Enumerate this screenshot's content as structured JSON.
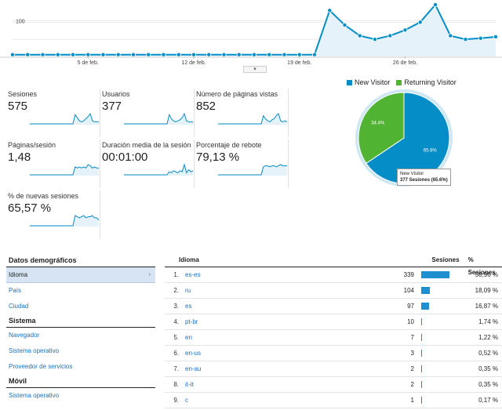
{
  "timeline": {
    "y_tick": "100",
    "y_tick_value": 100,
    "y_max": 145,
    "values": [
      5,
      5,
      5,
      5,
      5,
      5,
      5,
      5,
      5,
      5,
      5,
      5,
      5,
      5,
      5,
      5,
      5,
      5,
      5,
      5,
      5,
      129,
      88,
      58,
      48,
      58,
      74,
      96,
      145,
      58,
      48,
      51,
      55
    ],
    "x_labels": [
      {
        "index": 5,
        "label": "5 de feb."
      },
      {
        "index": 12,
        "label": "12 de feb."
      },
      {
        "index": 19,
        "label": "19 de feb."
      },
      {
        "index": 26,
        "label": "26 de feb."
      }
    ],
    "line_color": "#058dc7",
    "fill_color": "#e6f2f9",
    "handle": "▾"
  },
  "metrics": [
    {
      "label": "Sesiones",
      "value": "575",
      "spark": [
        0,
        0,
        0,
        0,
        0,
        0,
        0,
        0,
        0,
        0,
        0,
        0,
        0,
        0,
        0,
        0,
        0,
        0,
        0,
        0,
        0,
        9,
        6,
        3,
        2,
        3,
        5,
        7,
        10,
        3,
        2,
        2,
        2
      ]
    },
    {
      "label": "Usuarios",
      "value": "377",
      "spark": [
        0,
        0,
        0,
        0,
        0,
        0,
        0,
        0,
        0,
        0,
        0,
        0,
        0,
        0,
        0,
        0,
        0,
        0,
        0,
        0,
        0,
        9,
        5,
        3,
        2,
        3,
        4,
        6,
        10,
        3,
        2,
        2,
        2
      ]
    },
    {
      "label": "Número de páginas vistas",
      "value": "852",
      "spark": [
        0,
        0,
        0,
        0,
        0,
        0,
        0,
        0,
        0,
        0,
        0,
        0,
        0,
        0,
        0,
        0,
        0,
        0,
        0,
        0,
        0,
        8,
        5,
        3,
        2,
        4,
        5,
        8,
        10,
        3,
        2,
        3,
        2
      ]
    },
    {
      "label": "Páginas/sesión",
      "value": "1,48",
      "spark": [
        0,
        0,
        0,
        0,
        0,
        0,
        0,
        0,
        0,
        0,
        0,
        0,
        0,
        0,
        0,
        0,
        0,
        0,
        0,
        0,
        0,
        7,
        6,
        7,
        6,
        7,
        6,
        9,
        8,
        6,
        7,
        6,
        6
      ]
    },
    {
      "label": "Duración media de la sesión",
      "value": "00:01:00",
      "spark": [
        0,
        0,
        0,
        0,
        0,
        0,
        0,
        0,
        0,
        0,
        0,
        0,
        0,
        0,
        0,
        0,
        0,
        0,
        0,
        0,
        0,
        3,
        2,
        4,
        3,
        2,
        4,
        3,
        10,
        2,
        5,
        3,
        4
      ]
    },
    {
      "label": "Porcentaje de rebote",
      "value": "79,13 %",
      "spark": [
        0,
        0,
        0,
        0,
        0,
        0,
        0,
        0,
        0,
        0,
        0,
        0,
        0,
        0,
        0,
        0,
        0,
        0,
        0,
        0,
        0,
        7,
        8,
        8,
        7,
        8,
        8,
        7,
        8,
        9,
        8,
        8,
        8
      ]
    },
    {
      "label": "% de nuevas sesiones",
      "value": "65,57 %",
      "spark": [
        0,
        0,
        0,
        0,
        0,
        0,
        0,
        0,
        0,
        0,
        0,
        0,
        0,
        0,
        0,
        0,
        0,
        0,
        0,
        0,
        0,
        9,
        8,
        7,
        8,
        9,
        7,
        8,
        8,
        9,
        7,
        7,
        5
      ]
    }
  ],
  "pie": {
    "legend": [
      {
        "label": "New Visitor",
        "color": "#058dc7"
      },
      {
        "label": "Returning Visitor",
        "color": "#50b432"
      }
    ],
    "slices": [
      {
        "name": "New Visitor",
        "value": 65.6,
        "label": "65.6%",
        "color": "#058dc7"
      },
      {
        "name": "Returning Visitor",
        "value": 34.4,
        "label": "34.4%",
        "color": "#50b432"
      }
    ],
    "tooltip": {
      "title": "New Visitor",
      "detail": "377 Sesiones (65.6%)"
    }
  },
  "nav": {
    "groups": [
      {
        "title": "Datos demográficos",
        "items": [
          {
            "label": "Idioma",
            "active": true
          },
          {
            "label": "País"
          },
          {
            "label": "Ciudad"
          }
        ]
      },
      {
        "title": "Sistema",
        "items": [
          {
            "label": "Navegador"
          },
          {
            "label": "Sistema operativo"
          },
          {
            "label": "Proveedor de servicios"
          }
        ]
      },
      {
        "title": "Móvil",
        "items": [
          {
            "label": "Sistema operativo"
          }
        ]
      }
    ],
    "chevron": "›"
  },
  "table": {
    "headers": {
      "lang": "Idioma",
      "sessions": "Sesiones",
      "pct": "% Sesiones"
    },
    "rows": [
      {
        "idx": "1.",
        "lang": "es-es",
        "sessions": "339",
        "pct": "58,96 %",
        "share": 58.96
      },
      {
        "idx": "2.",
        "lang": "ru",
        "sessions": "104",
        "pct": "18,09 %",
        "share": 18.09
      },
      {
        "idx": "3.",
        "lang": "es",
        "sessions": "97",
        "pct": "16,87 %",
        "share": 16.87
      },
      {
        "idx": "4.",
        "lang": "pt-br",
        "sessions": "10",
        "pct": "1,74 %",
        "share": 1.74
      },
      {
        "idx": "5.",
        "lang": "en",
        "sessions": "7",
        "pct": "1,22 %",
        "share": 1.22
      },
      {
        "idx": "6.",
        "lang": "en-us",
        "sessions": "3",
        "pct": "0,52 %",
        "share": 0.52
      },
      {
        "idx": "7.",
        "lang": "en-au",
        "sessions": "2",
        "pct": "0,35 %",
        "share": 0.35
      },
      {
        "idx": "8.",
        "lang": "it-it",
        "sessions": "2",
        "pct": "0,35 %",
        "share": 0.35
      },
      {
        "idx": "9.",
        "lang": "c",
        "sessions": "1",
        "pct": "0,17 %",
        "share": 0.17
      }
    ],
    "bar_color": "#1f8fcf"
  }
}
